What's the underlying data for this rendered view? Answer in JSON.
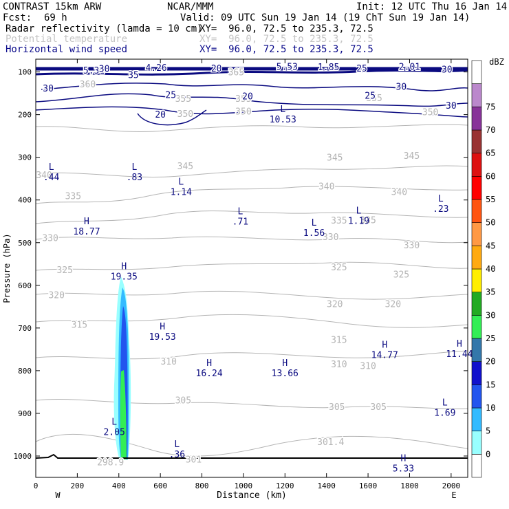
{
  "header": {
    "model": "CONTRAST 15km ARW",
    "org": "NCAR/MMM",
    "init": "Init: 12 UTC Thu 16 Jan 14",
    "fcst_label": "Fcst:",
    "fcst_value": "69 h",
    "valid": "Valid: 09 UTC Sun 19 Jan 14 (19 ChT Sun 19 Jan 14)",
    "fields": [
      {
        "name": "Radar reflectivity (lamda = 10 cm)",
        "xy": "XY=  96.0, 72.5 to 235.3, 72.5"
      },
      {
        "name": "Potential temperature",
        "xy": "XY=  96.0, 72.5 to 235.3, 72.5"
      },
      {
        "name": "Horizontal wind speed",
        "xy": "XY=  96.0, 72.5 to 235.3, 72.5"
      }
    ]
  },
  "chart_data": {
    "type": "contour-cross-section",
    "xlabel": "Distance (km)",
    "ylabel": "Pressure (hPa)",
    "xlim": [
      0,
      2080
    ],
    "ylim": [
      1050,
      70
    ],
    "x_ticks": [
      0,
      200,
      400,
      600,
      800,
      1000,
      1200,
      1400,
      1600,
      1800,
      2000
    ],
    "y_ticks": [
      100,
      200,
      300,
      400,
      500,
      600,
      700,
      800,
      900,
      1000
    ],
    "x_end_labels": {
      "left": "W",
      "right": "E"
    },
    "colorbar": {
      "unit": "dBZ",
      "levels": [
        0,
        5,
        10,
        15,
        20,
        25,
        30,
        35,
        40,
        45,
        50,
        55,
        60,
        65,
        70,
        75
      ],
      "colors": [
        "#ffffff",
        "#99ffff",
        "#33bbff",
        "#2255ee",
        "#1111cc",
        "#3377aa",
        "#33ee55",
        "#22aa22",
        "#ffee00",
        "#ffaa11",
        "#ff9944",
        "#ff5511",
        "#ff0000",
        "#dd1111",
        "#993333",
        "#883399",
        "#bb88cc",
        "#ffffff"
      ]
    },
    "theta_labels": [
      {
        "t": "360",
        "x": 250,
        "p": 128
      },
      {
        "t": "365",
        "x": 965,
        "p": 100
      },
      {
        "t": "355",
        "x": 710,
        "p": 162
      },
      {
        "t": "355",
        "x": 1000,
        "p": 162
      },
      {
        "t": "355",
        "x": 1630,
        "p": 160
      },
      {
        "t": "350",
        "x": 720,
        "p": 197
      },
      {
        "t": "350",
        "x": 1000,
        "p": 192
      },
      {
        "t": "350",
        "x": 1900,
        "p": 193
      },
      {
        "t": "345",
        "x": 720,
        "p": 320
      },
      {
        "t": "345",
        "x": 1440,
        "p": 300
      },
      {
        "t": "345",
        "x": 1810,
        "p": 296
      },
      {
        "t": "340",
        "x": 40,
        "p": 341
      },
      {
        "t": "340",
        "x": 1400,
        "p": 367
      },
      {
        "t": "340",
        "x": 1750,
        "p": 380
      },
      {
        "t": "335",
        "x": 180,
        "p": 390
      },
      {
        "t": "335",
        "x": 1460,
        "p": 447
      },
      {
        "t": "335",
        "x": 1600,
        "p": 446
      },
      {
        "t": "330",
        "x": 70,
        "p": 488
      },
      {
        "t": "330",
        "x": 1420,
        "p": 486
      },
      {
        "t": "330",
        "x": 1810,
        "p": 505
      },
      {
        "t": "325",
        "x": 140,
        "p": 563
      },
      {
        "t": "325",
        "x": 1460,
        "p": 557
      },
      {
        "t": "325",
        "x": 1760,
        "p": 574
      },
      {
        "t": "320",
        "x": 100,
        "p": 622
      },
      {
        "t": "320",
        "x": 1440,
        "p": 643
      },
      {
        "t": "320",
        "x": 1720,
        "p": 643
      },
      {
        "t": "315",
        "x": 210,
        "p": 691
      },
      {
        "t": "315",
        "x": 1460,
        "p": 727
      },
      {
        "t": "310",
        "x": 640,
        "p": 778
      },
      {
        "t": "310",
        "x": 1460,
        "p": 784
      },
      {
        "t": "310",
        "x": 1600,
        "p": 788
      },
      {
        "t": "305",
        "x": 710,
        "p": 869
      },
      {
        "t": "305",
        "x": 1450,
        "p": 884
      },
      {
        "t": "305",
        "x": 1650,
        "p": 884
      },
      {
        "t": "301.4",
        "x": 1420,
        "p": 966
      },
      {
        "t": "301",
        "x": 760,
        "p": 1007
      },
      {
        "t": "298.9",
        "x": 360,
        "p": 1014
      }
    ],
    "wind_labels": [
      {
        "t": "5.31",
        "x": 280,
        "p": 96
      },
      {
        "t": "30",
        "x": 330,
        "p": 92
      },
      {
        "t": "35",
        "x": 470,
        "p": 106
      },
      {
        "t": "4.26",
        "x": 580,
        "p": 89
      },
      {
        "t": "20",
        "x": 870,
        "p": 91
      },
      {
        "t": "5.53",
        "x": 1210,
        "p": 87
      },
      {
        "t": "1.85",
        "x": 1410,
        "p": 88
      },
      {
        "t": "25",
        "x": 1570,
        "p": 91
      },
      {
        "t": "2.01",
        "x": 1800,
        "p": 87
      },
      {
        "t": "30",
        "x": 1980,
        "p": 93
      },
      {
        "t": "30",
        "x": 60,
        "p": 138
      },
      {
        "t": "30",
        "x": 1760,
        "p": 134
      },
      {
        "t": "25",
        "x": 650,
        "p": 153
      },
      {
        "t": "20",
        "x": 1020,
        "p": 156
      },
      {
        "t": "25",
        "x": 1610,
        "p": 155
      },
      {
        "t": "30",
        "x": 2000,
        "p": 178
      },
      {
        "t": "20",
        "x": 600,
        "p": 199
      }
    ],
    "extrema": [
      {
        "k": "L",
        "v": "10.53",
        "x": 1190,
        "p": 197
      },
      {
        "k": "L",
        "v": ".44",
        "x": 75,
        "p": 333
      },
      {
        "k": "L",
        "v": ".83",
        "x": 475,
        "p": 333
      },
      {
        "k": "L",
        "v": "1.14",
        "x": 700,
        "p": 367
      },
      {
        "k": "L",
        "v": ".71",
        "x": 985,
        "p": 437
      },
      {
        "k": "L",
        "v": "1.19",
        "x": 1555,
        "p": 435
      },
      {
        "k": "L",
        "v": ".23",
        "x": 1950,
        "p": 407
      },
      {
        "k": "H",
        "v": "18.77",
        "x": 245,
        "p": 460
      },
      {
        "k": "L",
        "v": "1.56",
        "x": 1340,
        "p": 463
      },
      {
        "k": "H",
        "v": "19.35",
        "x": 425,
        "p": 566
      },
      {
        "k": "H",
        "v": "19.53",
        "x": 610,
        "p": 707
      },
      {
        "k": "H",
        "v": "14.77",
        "x": 1680,
        "p": 749
      },
      {
        "k": "H",
        "v": "11.44",
        "x": 2040,
        "p": 747
      },
      {
        "k": "H",
        "v": "16.24",
        "x": 835,
        "p": 792
      },
      {
        "k": "H",
        "v": "13.66",
        "x": 1200,
        "p": 792
      },
      {
        "k": "L",
        "v": "1.69",
        "x": 1970,
        "p": 885
      },
      {
        "k": "L",
        "v": "2.05",
        "x": 378,
        "p": 930
      },
      {
        "k": "L",
        "v": ".36",
        "x": 680,
        "p": 982
      },
      {
        "k": "H",
        "v": "5.33",
        "x": 1770,
        "p": 1015
      }
    ]
  }
}
